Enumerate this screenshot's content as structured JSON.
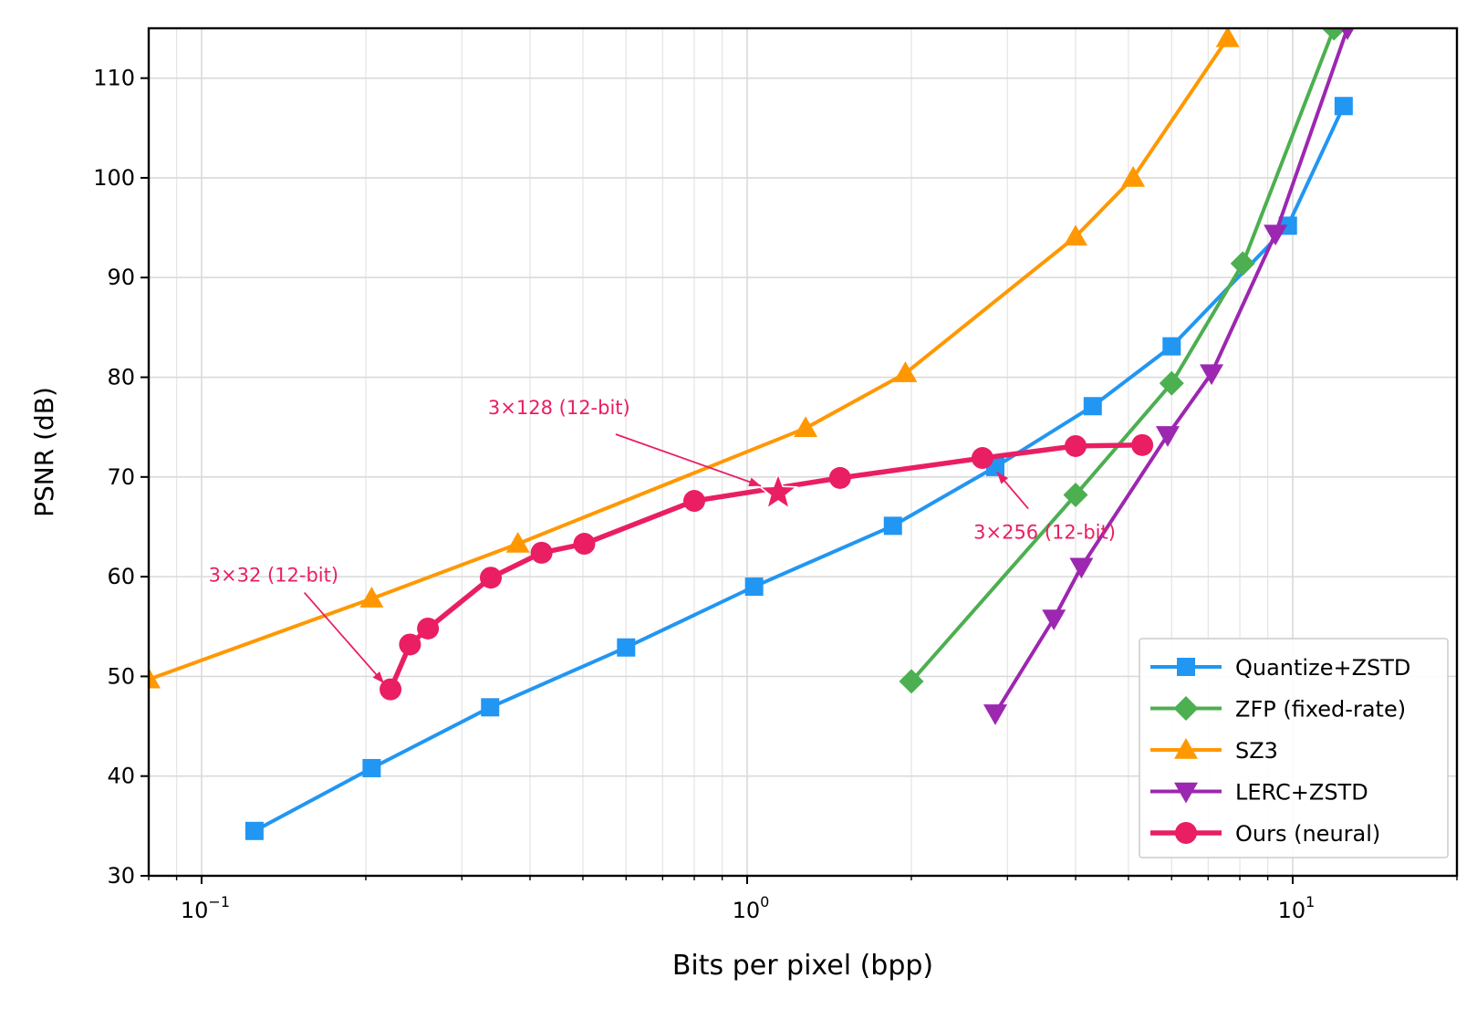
{
  "chart_data": {
    "type": "line",
    "title": "",
    "xlabel": "Bits per pixel (bpp)",
    "ylabel": "PSNR (dB)",
    "xscale": "log",
    "xlim": [
      0.08,
      20
    ],
    "ylim": [
      30,
      115
    ],
    "xticks": [
      {
        "value": 0.1,
        "base": "10",
        "exp": "−1"
      },
      {
        "value": 1,
        "base": "10",
        "exp": "0"
      },
      {
        "value": 10,
        "base": "10",
        "exp": "1"
      }
    ],
    "yticks": [
      30,
      40,
      50,
      60,
      70,
      80,
      90,
      100,
      110
    ],
    "grid": true,
    "legend_position": "bottom-right",
    "series": [
      {
        "name": "Quantize+ZSTD",
        "color": "#2196F3",
        "marker": "square",
        "x": [
          0.125,
          0.205,
          0.338,
          0.6,
          1.03,
          1.85,
          2.85,
          4.3,
          6.0,
          9.8,
          12.4
        ],
        "y": [
          34.5,
          40.8,
          46.9,
          52.9,
          59.0,
          65.1,
          71.0,
          77.1,
          83.1,
          95.2,
          107.2
        ]
      },
      {
        "name": "ZFP (fixed-rate)",
        "color": "#4CAF50",
        "marker": "diamond",
        "x": [
          2.0,
          4.0,
          6.0,
          8.1,
          11.9
        ],
        "y": [
          49.5,
          68.2,
          79.4,
          91.4,
          115.0
        ]
      },
      {
        "name": "SZ3",
        "color": "#FF9800",
        "marker": "triangle-up",
        "x": [
          0.08,
          0.205,
          0.38,
          1.28,
          1.95,
          4.0,
          5.1,
          7.6
        ],
        "y": [
          49.7,
          57.8,
          63.3,
          74.9,
          80.4,
          94.1,
          100.0,
          114.0
        ]
      },
      {
        "name": "LERC+ZSTD",
        "color": "#9C27B0",
        "marker": "triangle-down",
        "x": [
          2.85,
          3.65,
          4.1,
          5.9,
          7.1,
          9.3,
          12.6
        ],
        "y": [
          46.3,
          55.8,
          61.0,
          74.2,
          80.4,
          94.4,
          115.0
        ]
      },
      {
        "name": "Ours (neural)",
        "color": "#E91E63",
        "marker": "circle",
        "x": [
          0.222,
          0.241,
          0.26,
          0.339,
          0.42,
          0.503,
          0.8,
          1.48,
          2.7,
          4.0,
          5.3
        ],
        "y": [
          48.7,
          53.2,
          54.8,
          59.9,
          62.4,
          63.3,
          67.6,
          69.9,
          71.9,
          73.1,
          73.2
        ]
      }
    ],
    "highlight_point": {
      "x": 1.14,
      "y": 68.4,
      "marker": "star",
      "color": "#E91E63"
    },
    "annotations": [
      {
        "text": "3×32 (12-bit)",
        "text_x": 0.103,
        "text_y": 59.5,
        "arrow_to_x": 0.216,
        "arrow_to_y": 49.3
      },
      {
        "text": "3×128 (12-bit)",
        "text_x": 0.335,
        "text_y": 76.3,
        "arrow_to_x": 1.06,
        "arrow_to_y": 69.1
      },
      {
        "text": "3×256 (12-bit)",
        "text_x": 2.6,
        "text_y": 63.8,
        "arrow_to_x": 2.87,
        "arrow_to_y": 70.5
      }
    ]
  }
}
